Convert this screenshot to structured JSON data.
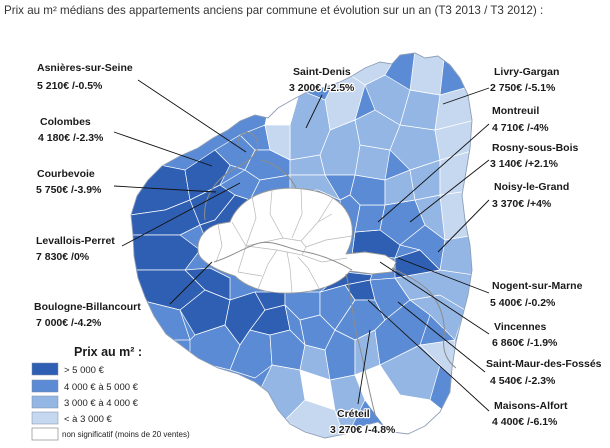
{
  "title": "Prix au m² médians des appartements anciens par commune et évolution sur un an (T3 2013 / T3 2012) :",
  "communes": [
    {
      "name": "Asnières-sur-Seine",
      "value": "5 210€ /-0.5%"
    },
    {
      "name": "Colombes",
      "value": "4 180€ /-2.3%"
    },
    {
      "name": "Courbevoie",
      "value": "5 750€ /-3.9%"
    },
    {
      "name": "Levallois-Perret",
      "value": "7 830€ /0%"
    },
    {
      "name": "Boulogne-Billancourt",
      "value": "7 000€ /-4.2%"
    },
    {
      "name": "Saint-Denis",
      "value": "3 200€ /-2.5%"
    },
    {
      "name": "Livry-Gargan",
      "value": "2 750€ /-5.1%"
    },
    {
      "name": "Montreuil",
      "value": "4 710€ /-4%"
    },
    {
      "name": "Rosny-sous-Bois",
      "value": "3 140€ /+2.1%"
    },
    {
      "name": "Noisy-le-Grand",
      "value": "3 370€ /+4%"
    },
    {
      "name": "Nogent-sur-Marne",
      "value": "5 400€ /-0.2%"
    },
    {
      "name": "Vincennes",
      "value": "6 860€ /-1.9%"
    },
    {
      "name": "Saint-Maur-des-Fossés",
      "value": "4 540€ /-2.3%"
    },
    {
      "name": "Maisons-Alfort",
      "value": "4 400€ /-6.1%"
    },
    {
      "name": "Créteil",
      "value": "3 270€ /-4.8%"
    }
  ],
  "legend": {
    "title": "Prix au m² :",
    "items": [
      {
        "label": "> 5 000 €",
        "color": "#2f5fb3"
      },
      {
        "label": "4 000 € à 5 000 €",
        "color": "#5b8bd4"
      },
      {
        "label": "3 000 € à 4 000 €",
        "color": "#94b6e4"
      },
      {
        "label": "< à 3 000 €",
        "color": "#c6d8f0"
      },
      {
        "label": "non significatif (moins de 20 ventes)",
        "color": "#ffffff"
      }
    ]
  }
}
